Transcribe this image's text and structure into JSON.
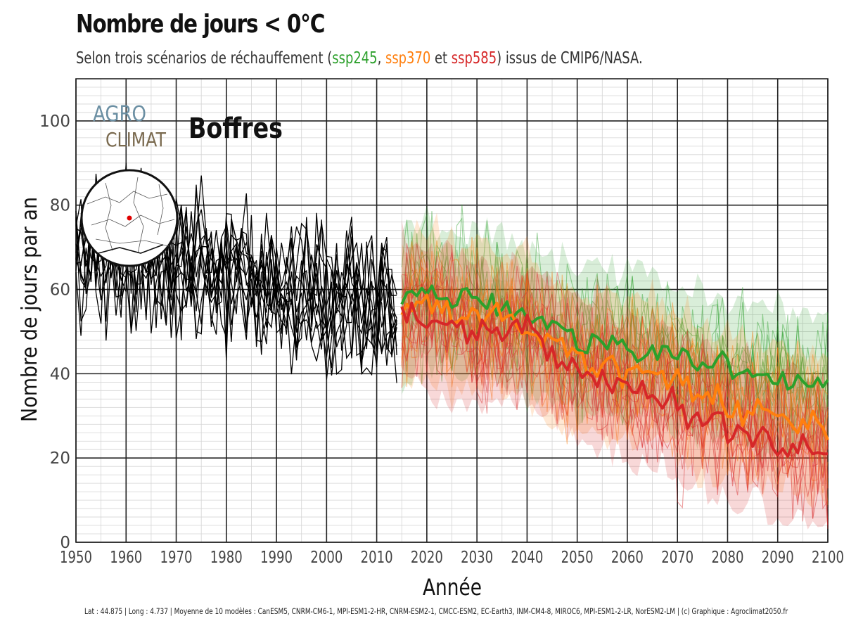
{
  "title": "Nombre de jours < 0°C",
  "subtitle": {
    "prefix": "Selon trois scénarios de réchauffement (",
    "ssp245": "ssp245",
    "sep1": ", ",
    "ssp370": "ssp370",
    "sep2": " et ",
    "ssp585": "ssp585",
    "suffix": ") issus de CMIP6/NASA."
  },
  "logo": {
    "line1": "AGRO",
    "line2": "CLIMAT"
  },
  "location": "Boffres",
  "footer": "Lat : 44.875  |  Long : 4.737  |  Moyenne de 10 modèles : CanESM5, CNRM-CM6-1, MPI-ESM1-2-HR, CNRM-ESM2-1, CMCC-ESM2, EC-Earth3, INM-CM4-8, MIROC6, MPI-ESM1-2-LR, NorESM2-LM  |  (c) Graphique : Agroclimat2050.fr",
  "colors": {
    "historical": "#000000",
    "ssp245": "#2ca02c",
    "ssp370": "#ff7f0e",
    "ssp585": "#d62728",
    "logo_blue": "#6b8fa3",
    "logo_brown": "#7a6a4f"
  },
  "chart_data": {
    "type": "line",
    "xlabel": "Année",
    "ylabel": "Nombre de jours par an",
    "xlim": [
      1950,
      2100
    ],
    "ylim": [
      0,
      110
    ],
    "x_ticks": [
      1950,
      1960,
      1970,
      1980,
      1990,
      2000,
      2010,
      2020,
      2030,
      2040,
      2050,
      2060,
      2070,
      2080,
      2090,
      2100
    ],
    "y_ticks": [
      0,
      20,
      40,
      60,
      80,
      100
    ],
    "grid": true,
    "historical": {
      "name": "",
      "x_start": 1950,
      "x_end": 2014,
      "mean_start": 72,
      "mean_end": 55,
      "spread": 18
    },
    "series": [
      {
        "name": "ssp245",
        "x": [
          2015,
          2020,
          2025,
          2030,
          2035,
          2040,
          2045,
          2050,
          2055,
          2060,
          2065,
          2070,
          2075,
          2080,
          2085,
          2090,
          2095,
          2100
        ],
        "values": [
          57,
          60,
          57,
          58,
          55,
          53,
          52,
          47,
          48,
          46,
          46,
          44,
          42,
          42,
          40,
          39,
          38,
          37
        ]
      },
      {
        "name": "ssp370",
        "x": [
          2015,
          2020,
          2025,
          2030,
          2035,
          2040,
          2045,
          2050,
          2055,
          2060,
          2065,
          2070,
          2075,
          2080,
          2085,
          2090,
          2095,
          2100
        ],
        "values": [
          53,
          58,
          53,
          54,
          53,
          50,
          46,
          44,
          42,
          40,
          40,
          38,
          35,
          33,
          30,
          30,
          29,
          26
        ]
      },
      {
        "name": "ssp585",
        "x": [
          2015,
          2020,
          2025,
          2030,
          2035,
          2040,
          2045,
          2050,
          2055,
          2060,
          2065,
          2070,
          2075,
          2080,
          2085,
          2090,
          2095,
          2100
        ],
        "values": [
          57,
          52,
          53,
          50,
          49,
          51,
          46,
          42,
          40,
          36,
          35,
          32,
          30,
          28,
          25,
          23,
          22,
          19
        ]
      }
    ]
  }
}
